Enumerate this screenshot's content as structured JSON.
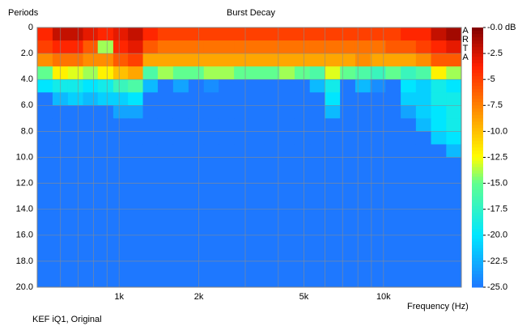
{
  "chart_data": {
    "type": "heatmap",
    "title": "Burst Decay",
    "ylabel": "Periods",
    "xlabel": "Frequency (Hz)",
    "note": "KEF iQ1, Original",
    "watermark": "ARTA",
    "xscale": "log",
    "xlim": [
      490,
      19700
    ],
    "ylim": [
      0,
      20
    ],
    "zlim": [
      -25,
      0
    ],
    "colormap": "jet",
    "grid": true,
    "xticks": [
      {
        "value": 1000,
        "label": "1k"
      },
      {
        "value": 2000,
        "label": "2k"
      },
      {
        "value": 5000,
        "label": "5k"
      },
      {
        "value": 10000,
        "label": "10k"
      }
    ],
    "xminorticks": [
      600,
      700,
      800,
      900,
      3000,
      4000,
      6000,
      7000,
      8000,
      9000
    ],
    "yticks": [
      0,
      {
        "value": 2,
        "label": "2.0"
      },
      {
        "value": 4,
        "label": "4.0"
      },
      {
        "value": 6,
        "label": "6.0"
      },
      {
        "value": 8,
        "label": "8.0"
      },
      {
        "value": 10,
        "label": "10.0"
      },
      {
        "value": 12,
        "label": "12.0"
      },
      {
        "value": 14,
        "label": "14.0"
      },
      {
        "value": 16,
        "label": "16.0"
      },
      {
        "value": 18,
        "label": "18.0"
      },
      {
        "value": 20,
        "label": "20.0"
      }
    ],
    "zticks": [
      {
        "value": 0,
        "label": "-0.0 dB"
      },
      -2.5,
      -5.0,
      -7.5,
      {
        "value": -10,
        "label": "-10.0"
      },
      -12.5,
      {
        "value": -15,
        "label": "-15.0"
      },
      -17.5,
      {
        "value": -20,
        "label": "-20.0"
      },
      -22.5,
      {
        "value": -25,
        "label": "-25.0"
      }
    ],
    "xbins": [
      490,
      560,
      640,
      730,
      830,
      950,
      1080,
      1230,
      1400,
      1600,
      1830,
      2090,
      2380,
      2720,
      3100,
      3540,
      4040,
      4610,
      5260,
      6000,
      6850,
      7820,
      8920,
      10180,
      11620,
      13260,
      15130,
      17270,
      19700
    ],
    "ybins": [
      0,
      1,
      2,
      3,
      4,
      5,
      6,
      7,
      8,
      9,
      10,
      20
    ],
    "z": [
      [
        -4,
        -2,
        -2,
        -3,
        -4,
        -3,
        -2,
        -4,
        -5,
        -5,
        -5,
        -5,
        -5,
        -5,
        -5,
        -5,
        -5,
        -5,
        -5,
        -5,
        -5,
        -5,
        -5,
        -5,
        -4,
        -4,
        -2,
        -1
      ],
      [
        -5,
        -4,
        -4,
        -6,
        -14,
        -4,
        -3,
        -6,
        -7,
        -7,
        -7,
        -7,
        -7,
        -7,
        -7,
        -7,
        -7,
        -7,
        -7,
        -7,
        -7,
        -7,
        -7,
        -6,
        -6,
        -5,
        -4,
        -3
      ],
      [
        -8,
        -7,
        -7,
        -8,
        -8,
        -6,
        -5,
        -9,
        -9,
        -9,
        -9,
        -9,
        -9,
        -9,
        -9,
        -9,
        -9,
        -9,
        -9,
        -9,
        -9,
        -8,
        -9,
        -9,
        -9,
        -8,
        -6,
        -6
      ],
      [
        -15,
        -12,
        -13,
        -14,
        -12,
        -10,
        -9,
        -16,
        -14,
        -15,
        -15,
        -14,
        -14,
        -15,
        -15,
        -15,
        -14,
        -15,
        -16,
        -13,
        -15,
        -16,
        -17,
        -15,
        -17,
        -16,
        -12,
        -14
      ],
      [
        -20,
        -19,
        -19,
        -20,
        -19,
        -17,
        -16,
        -22,
        -25,
        -23,
        -25,
        -24,
        -25,
        -25,
        -25,
        -25,
        -25,
        -25,
        -22,
        -19,
        -25,
        -22,
        -24,
        -25,
        -20,
        -21,
        -19,
        -20
      ],
      [
        -25,
        -22,
        -21,
        -22,
        -21,
        -21,
        -20,
        -25,
        -25,
        -25,
        -25,
        -25,
        -25,
        -25,
        -25,
        -25,
        -25,
        -25,
        -25,
        -20,
        -25,
        -25,
        -25,
        -25,
        -21,
        -21,
        -19,
        -19
      ],
      [
        -25,
        -25,
        -25,
        -25,
        -25,
        -23,
        -23,
        -25,
        -25,
        -25,
        -25,
        -25,
        -25,
        -25,
        -25,
        -25,
        -25,
        -25,
        -25,
        -22,
        -25,
        -25,
        -25,
        -25,
        -23,
        -21,
        -20,
        -19
      ],
      [
        -25,
        -25,
        -25,
        -25,
        -25,
        -25,
        -25,
        -25,
        -25,
        -25,
        -25,
        -25,
        -25,
        -25,
        -25,
        -25,
        -25,
        -25,
        -25,
        -25,
        -25,
        -25,
        -25,
        -25,
        -25,
        -22,
        -20,
        -19
      ],
      [
        -25,
        -25,
        -25,
        -25,
        -25,
        -25,
        -25,
        -25,
        -25,
        -25,
        -25,
        -25,
        -25,
        -25,
        -25,
        -25,
        -25,
        -25,
        -25,
        -25,
        -25,
        -25,
        -25,
        -25,
        -25,
        -25,
        -21,
        -20
      ],
      [
        -25,
        -25,
        -25,
        -25,
        -25,
        -25,
        -25,
        -25,
        -25,
        -25,
        -25,
        -25,
        -25,
        -25,
        -25,
        -25,
        -25,
        -25,
        -25,
        -25,
        -25,
        -25,
        -25,
        -25,
        -25,
        -25,
        -25,
        -22
      ],
      [
        -25,
        -25,
        -25,
        -25,
        -25,
        -25,
        -25,
        -25,
        -25,
        -25,
        -25,
        -25,
        -25,
        -25,
        -25,
        -25,
        -25,
        -25,
        -25,
        -25,
        -25,
        -25,
        -25,
        -25,
        -25,
        -25,
        -25,
        -25
      ]
    ]
  }
}
